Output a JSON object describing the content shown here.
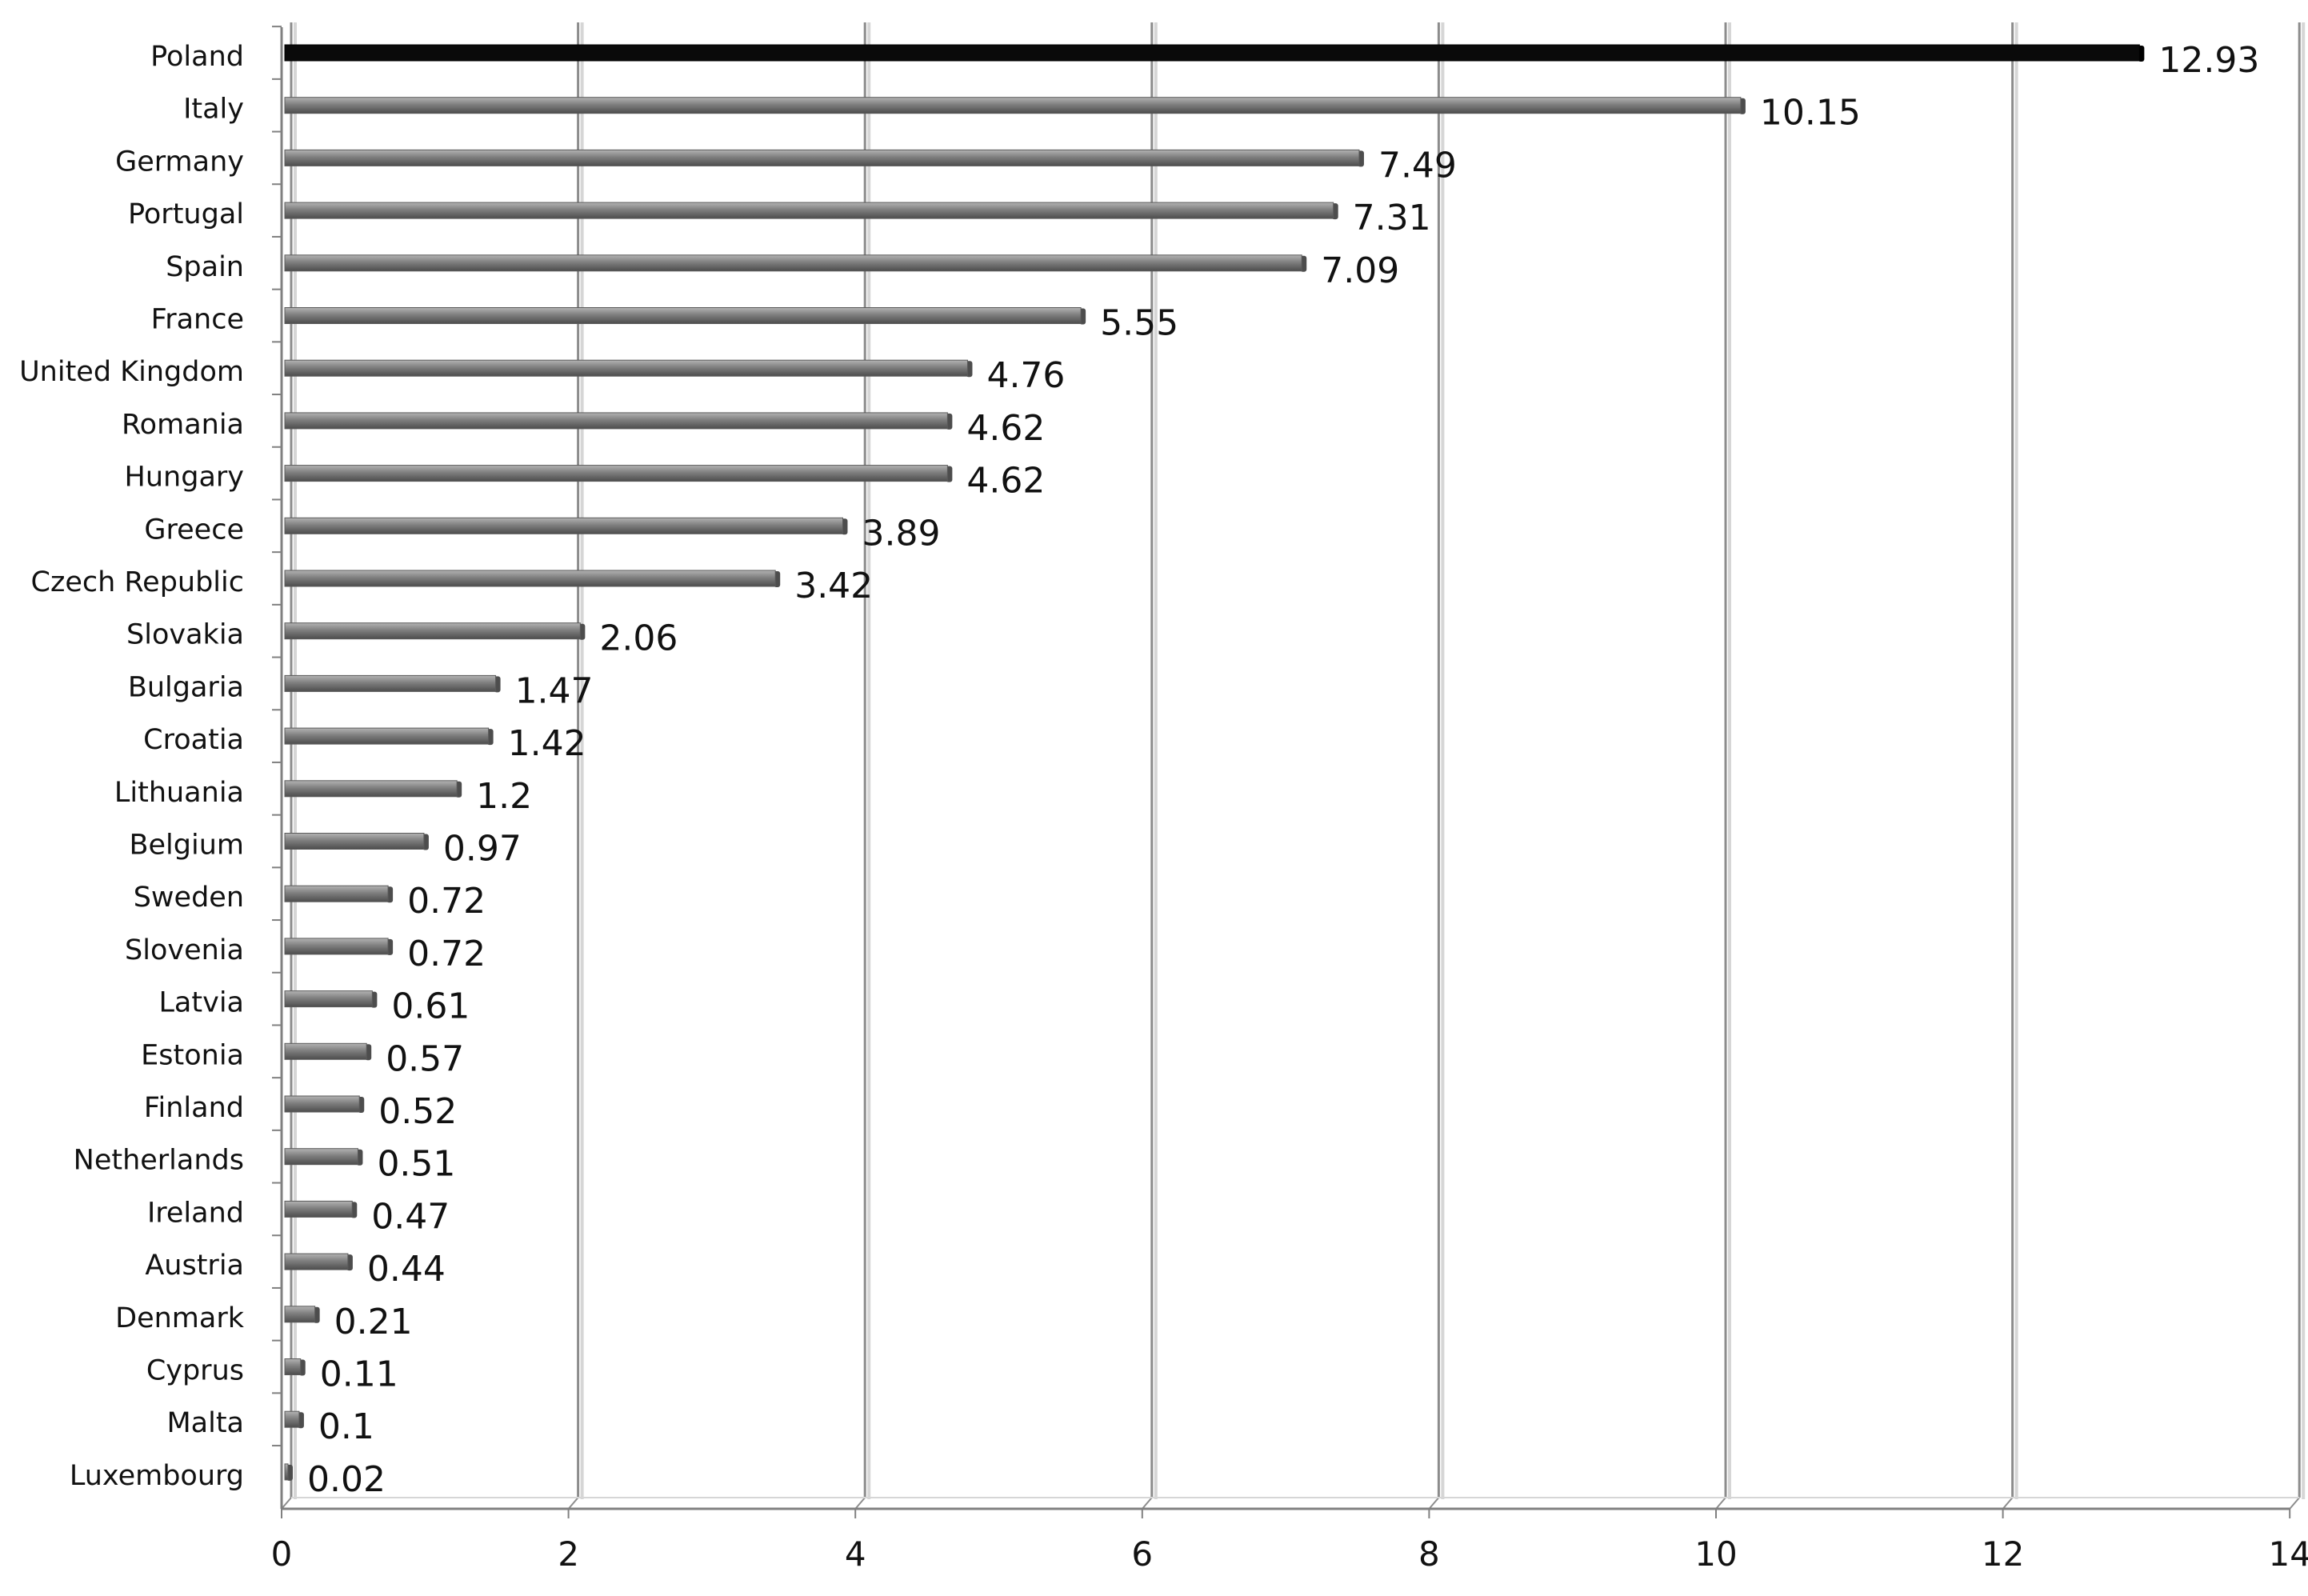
{
  "chart_data": {
    "type": "bar",
    "orientation": "horizontal",
    "title": "",
    "xlabel": "",
    "ylabel": "",
    "xlim": [
      0,
      14
    ],
    "x_ticks": [
      "0",
      "2",
      "4",
      "6",
      "8",
      "10",
      "12",
      "14"
    ],
    "grid": true,
    "legend": "none",
    "categories": [
      "Poland",
      "Italy",
      "Germany",
      "Portugal",
      "Spain",
      "France",
      "United Kingdom",
      "Romania",
      "Hungary",
      "Greece",
      "Czech Republic",
      "Slovakia",
      "Bulgaria",
      "Croatia",
      "Lithuania",
      "Belgium",
      "Sweden",
      "Slovenia",
      "Latvia",
      "Estonia",
      "Finland",
      "Netherlands",
      "Ireland",
      "Austria",
      "Denmark",
      "Cyprus",
      "Malta",
      "Luxembourg"
    ],
    "values": [
      12.93,
      10.15,
      7.49,
      7.31,
      7.09,
      5.55,
      4.76,
      4.62,
      4.62,
      3.89,
      3.42,
      2.06,
      1.47,
      1.42,
      1.2,
      0.97,
      0.72,
      0.72,
      0.61,
      0.57,
      0.52,
      0.51,
      0.47,
      0.44,
      0.21,
      0.11,
      0.1,
      0.02
    ],
    "value_labels": [
      "12.93",
      "10.15",
      "7.49",
      "7.31",
      "7.09",
      "5.55",
      "4.76",
      "4.62",
      "4.62",
      "3.89",
      "3.42",
      "2.06",
      "1.47",
      "1.42",
      "1.2",
      "0.97",
      "0.72",
      "0.72",
      "0.61",
      "0.57",
      "0.52",
      "0.51",
      "0.47",
      "0.44",
      "0.21",
      "0.11",
      "0.1",
      "0.02"
    ],
    "colors": {
      "highlight": "#0a0a0a",
      "bar": "#7f7f7f",
      "bar_top": "#b3b3b3",
      "bar_bottom": "#4d4d4d",
      "gridline": "#8c8c8c",
      "gridline_shadow": "#d6d6d6",
      "axis": "#808080"
    },
    "highlight_index": 0
  }
}
